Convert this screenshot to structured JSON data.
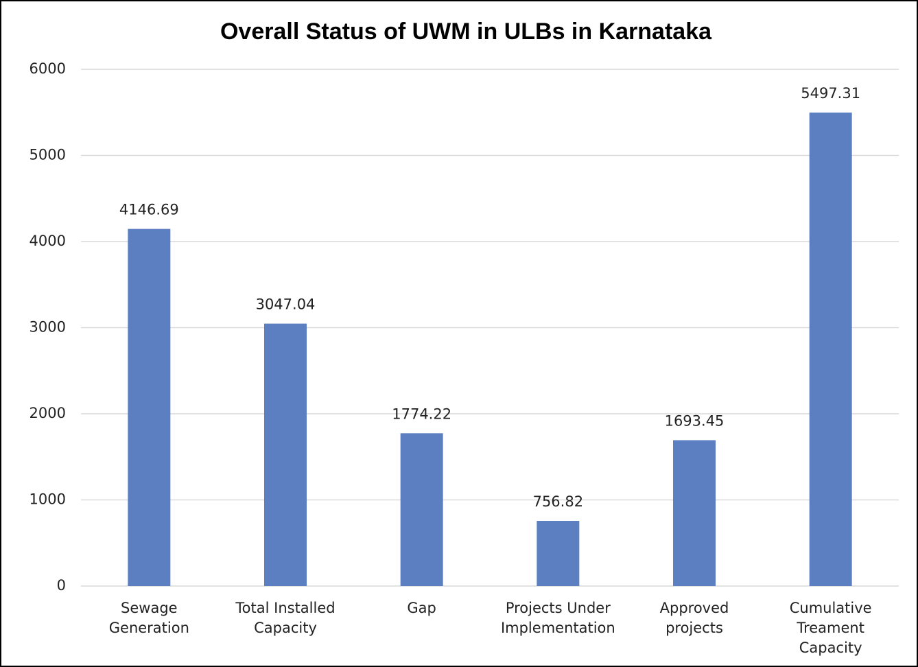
{
  "chart_data": {
    "type": "bar",
    "title": "Overall Status of UWM in ULBs in Karnataka",
    "categories": [
      "Sewage Generation",
      "Total Installed Capacity",
      "Gap",
      "Projects Under Implementation",
      "Approved projects",
      "Cumulative Treament Capacity"
    ],
    "values": [
      4146.69,
      3047.04,
      1774.22,
      756.82,
      1693.45,
      5497.31
    ],
    "color": "#5b7fc1",
    "ylim": [
      0,
      6000
    ],
    "yticks": [
      0,
      1000,
      2000,
      3000,
      4000,
      5000,
      6000
    ],
    "grid": true
  }
}
